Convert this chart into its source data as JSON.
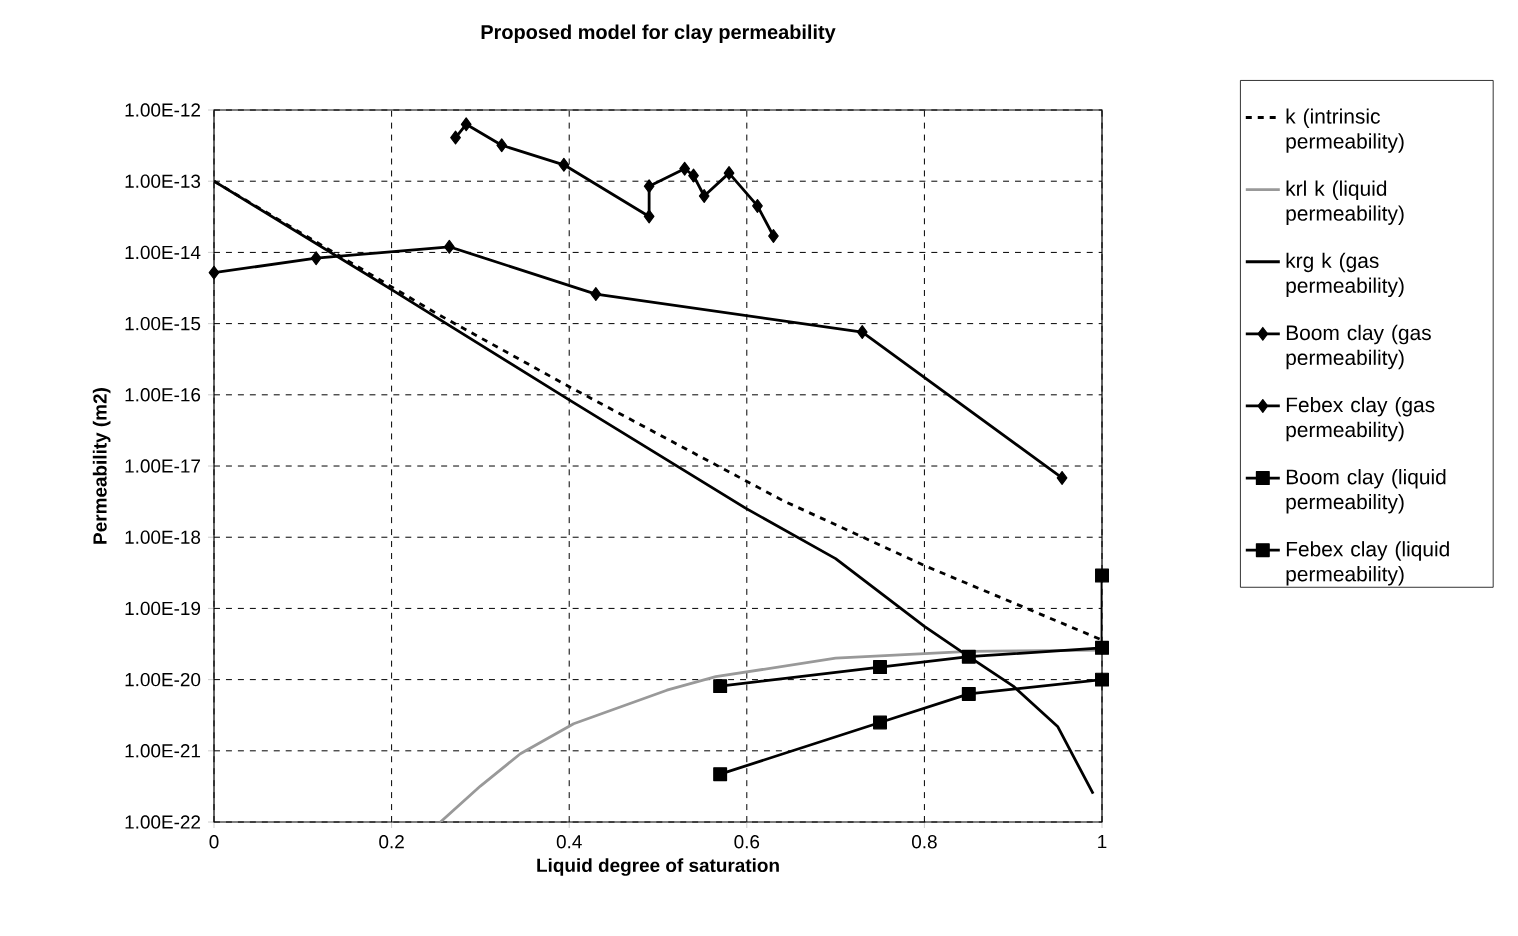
{
  "chart_data": {
    "type": "line",
    "title": "Proposed model for clay permeability",
    "xlabel": "Liquid degree of saturation",
    "ylabel": "Permeability (m2)",
    "xlim": [
      0,
      1
    ],
    "xticks": [
      0,
      0.2,
      0.4,
      0.6,
      0.8,
      1
    ],
    "ylim": [
      1e-22,
      1e-12
    ],
    "log": "y",
    "yticks": [
      {
        "value": 1e-22,
        "label": "1.00E-22"
      },
      {
        "value": 1e-21,
        "label": "1.00E-21"
      },
      {
        "value": 1e-20,
        "label": "1.00E-20"
      },
      {
        "value": 1e-19,
        "label": "1.00E-19"
      },
      {
        "value": 1e-18,
        "label": "1.00E-18"
      },
      {
        "value": 1e-17,
        "label": "1.00E-17"
      },
      {
        "value": 1e-16,
        "label": "1.00E-16"
      },
      {
        "value": 1e-15,
        "label": "1.00E-15"
      },
      {
        "value": 1e-14,
        "label": "1.00E-14"
      },
      {
        "value": 1e-13,
        "label": "1.00E-13"
      },
      {
        "value": 1e-12,
        "label": "1.00E-12"
      }
    ],
    "grid": true,
    "legend": "right",
    "series": [
      {
        "name": "k (intrinsic permeability)",
        "color": "#000000",
        "line_style": "dashed",
        "marker": "none",
        "x": [
          0,
          0.25,
          0.4,
          0.64,
          0.8,
          1
        ],
        "values": [
          1e-13,
          1.4e-15,
          1.3e-16,
          3.3e-18,
          4e-19,
          3.6e-20
        ]
      },
      {
        "name": "krl k (liquid permeability)",
        "color": "#999999",
        "line_style": "solid",
        "marker": "none",
        "x": [
          0.255,
          0.3,
          0.345,
          0.405,
          0.51,
          0.565,
          0.7,
          0.85,
          1
        ],
        "values": [
          1e-22,
          3.2e-22,
          9.1e-22,
          2.4e-21,
          7.1e-21,
          1.1e-20,
          2e-20,
          2.5e-20,
          2.6e-20
        ]
      },
      {
        "name": "krg k (gas permeability)",
        "color": "#000000",
        "line_style": "solid",
        "marker": "none",
        "x": [
          0,
          0.2,
          0.4,
          0.6,
          0.7,
          0.8,
          0.85,
          0.9,
          0.95,
          0.99
        ],
        "values": [
          1e-13,
          3e-15,
          8.5e-17,
          2.5e-18,
          5e-19,
          5.6e-20,
          2.1e-20,
          8.1e-21,
          2.2e-21,
          2.5e-22
        ]
      },
      {
        "name": "Boom clay (gas permeability)",
        "color": "#000000",
        "line_style": "solid",
        "marker": "diamond",
        "x": [
          0,
          0.115,
          0.265,
          0.43,
          0.73,
          0.955
        ],
        "values": [
          5.2e-15,
          8.3e-15,
          1.2e-14,
          2.6e-15,
          7.6e-16,
          6.8e-18
        ]
      },
      {
        "name": "Febex clay (gas permeability)",
        "color": "#000000",
        "line_style": "solid",
        "marker": "diamond",
        "x": [
          0.272,
          0.284,
          0.324,
          0.394,
          0.49,
          0.49,
          0.53,
          0.54,
          0.552,
          0.58,
          0.612,
          0.63
        ],
        "values": [
          4.1e-13,
          6.3e-13,
          3.2e-13,
          1.7e-13,
          3.2e-14,
          8.5e-14,
          1.5e-13,
          1.2e-13,
          6.2e-14,
          1.3e-13,
          4.5e-14,
          1.7e-14
        ]
      },
      {
        "name": "Boom clay (liquid permeability)",
        "color": "#000000",
        "line_style": "solid",
        "marker": "square",
        "x": [
          0.57,
          0.75,
          0.85,
          1,
          1
        ],
        "values": [
          8.1e-21,
          1.5e-20,
          2.1e-20,
          2.8e-20,
          2.9e-19
        ]
      },
      {
        "name": "Febex clay (liquid permeability)",
        "color": "#000000",
        "line_style": "solid",
        "marker": "square",
        "x": [
          0.57,
          0.75,
          0.85,
          1
        ],
        "values": [
          4.7e-22,
          2.5e-21,
          6.3e-21,
          1e-20
        ]
      }
    ]
  }
}
